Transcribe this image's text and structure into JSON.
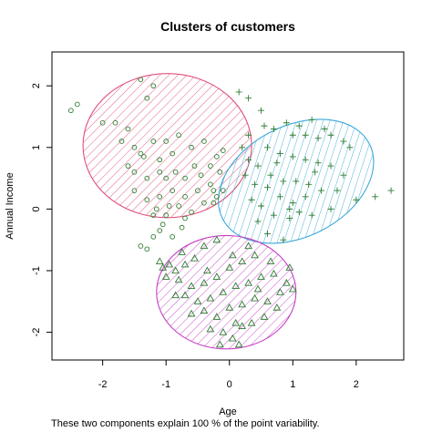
{
  "chart_data": {
    "type": "scatter",
    "title": "Clusters of customers",
    "xlabel": "Age",
    "ylabel": "Annual Income",
    "subtitle": "These two components explain 100 % of the point variability.",
    "xlim": [
      -2.8,
      2.75
    ],
    "ylim": [
      -2.45,
      2.55
    ],
    "x_ticks": [
      -2,
      -1,
      0,
      1,
      2
    ],
    "y_ticks": [
      -2,
      -1,
      0,
      1,
      2
    ],
    "grid": false,
    "colors": {
      "points": "#2e7d32",
      "cluster_1": "#e0507a",
      "cluster_2": "#3aa8d8",
      "cluster_3": "#c43fc4"
    },
    "clusters": [
      {
        "marker": "circle",
        "color": "#e0507a",
        "ellipse": {
          "cx": -0.98,
          "cy": 1.03,
          "rx": 1.33,
          "ry": 1.17,
          "angle": 0
        },
        "points": [
          [
            -2.5,
            1.6
          ],
          [
            -2.4,
            1.7
          ],
          [
            -2.0,
            1.4
          ],
          [
            -1.8,
            1.4
          ],
          [
            -1.6,
            1.3
          ],
          [
            -1.4,
            2.1
          ],
          [
            -1.3,
            1.8
          ],
          [
            -1.2,
            2.0
          ],
          [
            -1.7,
            1.1
          ],
          [
            -1.5,
            1.0
          ],
          [
            -1.4,
            0.9
          ],
          [
            -1.6,
            0.7
          ],
          [
            -1.35,
            0.85
          ],
          [
            -1.2,
            1.1
          ],
          [
            -1.1,
            0.8
          ],
          [
            -1.0,
            1.1
          ],
          [
            -0.9,
            0.9
          ],
          [
            -1.5,
            0.6
          ],
          [
            -1.3,
            0.5
          ],
          [
            -1.1,
            0.6
          ],
          [
            -1.0,
            0.5
          ],
          [
            -0.85,
            0.6
          ],
          [
            -0.7,
            0.5
          ],
          [
            -0.55,
            0.7
          ],
          [
            -0.45,
            0.55
          ],
          [
            -0.3,
            0.7
          ],
          [
            -0.2,
            0.85
          ],
          [
            -0.1,
            0.95
          ],
          [
            -0.15,
            0.6
          ],
          [
            -0.3,
            0.4
          ],
          [
            -0.5,
            0.3
          ],
          [
            -0.7,
            0.2
          ],
          [
            -0.9,
            0.3
          ],
          [
            -1.1,
            0.2
          ],
          [
            -1.3,
            0.15
          ],
          [
            -1.5,
            0.3
          ],
          [
            -1.2,
            -0.1
          ],
          [
            -1.0,
            -0.1
          ],
          [
            -0.8,
            0.05
          ],
          [
            -0.6,
            -0.05
          ],
          [
            -0.4,
            0.1
          ],
          [
            -0.2,
            0.2
          ],
          [
            -0.1,
            0.3
          ],
          [
            -0.25,
            0.1
          ],
          [
            -1.05,
            -0.25
          ],
          [
            -0.9,
            -0.45
          ],
          [
            -1.2,
            -0.45
          ],
          [
            -0.75,
            -0.3
          ],
          [
            -1.4,
            -0.6
          ],
          [
            -1.1,
            -0.35
          ],
          [
            -0.6,
            1.0
          ],
          [
            -0.8,
            1.2
          ],
          [
            -0.4,
            1.1
          ],
          [
            -0.25,
            0.3
          ],
          [
            -1.15,
            0.0
          ],
          [
            -0.95,
            0.05
          ],
          [
            -0.7,
            -0.15
          ],
          [
            -1.3,
            -0.65
          ]
        ]
      },
      {
        "marker": "plus",
        "color": "#3aa8d8",
        "ellipse": {
          "cx": 1.05,
          "cy": 0.45,
          "rx": 1.3,
          "ry": 0.9,
          "angle": -27
        },
        "points": [
          [
            0.15,
            1.9
          ],
          [
            0.3,
            1.8
          ],
          [
            0.5,
            1.6
          ],
          [
            0.3,
            1.2
          ],
          [
            0.55,
            1.35
          ],
          [
            0.7,
            1.3
          ],
          [
            0.9,
            1.4
          ],
          [
            1.1,
            1.35
          ],
          [
            1.3,
            1.45
          ],
          [
            1.5,
            1.3
          ],
          [
            1.6,
            1.2
          ],
          [
            1.8,
            1.1
          ],
          [
            1.4,
            1.15
          ],
          [
            1.2,
            1.2
          ],
          [
            1.0,
            1.2
          ],
          [
            0.6,
            1.0
          ],
          [
            0.8,
            0.9
          ],
          [
            1.0,
            0.85
          ],
          [
            1.2,
            0.8
          ],
          [
            1.4,
            0.75
          ],
          [
            1.6,
            0.7
          ],
          [
            1.8,
            0.55
          ],
          [
            0.3,
            0.8
          ],
          [
            0.45,
            0.7
          ],
          [
            0.65,
            0.55
          ],
          [
            0.85,
            0.45
          ],
          [
            1.05,
            0.45
          ],
          [
            1.25,
            0.4
          ],
          [
            1.45,
            0.3
          ],
          [
            1.7,
            0.3
          ],
          [
            0.25,
            0.55
          ],
          [
            0.4,
            0.4
          ],
          [
            0.6,
            0.35
          ],
          [
            0.8,
            0.2
          ],
          [
            1.0,
            0.1
          ],
          [
            1.2,
            0.2
          ],
          [
            0.35,
            0.15
          ],
          [
            0.5,
            0.05
          ],
          [
            0.7,
            -0.1
          ],
          [
            0.95,
            -0.15
          ],
          [
            1.1,
            -0.05
          ],
          [
            0.45,
            -0.2
          ],
          [
            0.6,
            -0.4
          ],
          [
            0.85,
            -0.5
          ],
          [
            1.3,
            -0.1
          ],
          [
            1.6,
            0.0
          ],
          [
            2.0,
            0.15
          ],
          [
            2.3,
            0.2
          ],
          [
            2.55,
            0.3
          ],
          [
            1.9,
            1.0
          ],
          [
            0.2,
            1.0
          ],
          [
            0.95,
            0.0
          ],
          [
            0.75,
            0.75
          ],
          [
            1.35,
            0.6
          ]
        ]
      },
      {
        "marker": "triangle",
        "color": "#c43fc4",
        "ellipse": {
          "cx": -0.05,
          "cy": -1.35,
          "rx": 1.1,
          "ry": 0.92,
          "angle": 0
        },
        "points": [
          [
            -1.1,
            -0.85
          ],
          [
            -1.05,
            -0.95
          ],
          [
            -0.95,
            -0.9
          ],
          [
            -0.85,
            -1.0
          ],
          [
            -0.7,
            -0.9
          ],
          [
            -0.55,
            -0.8
          ],
          [
            -0.4,
            -0.6
          ],
          [
            -0.2,
            -0.5
          ],
          [
            -1.0,
            -1.1
          ],
          [
            -0.8,
            -1.15
          ],
          [
            -0.6,
            -1.25
          ],
          [
            -0.4,
            -1.2
          ],
          [
            -0.2,
            -1.1
          ],
          [
            0.0,
            -0.95
          ],
          [
            0.2,
            -0.85
          ],
          [
            0.4,
            -0.75
          ],
          [
            -0.7,
            -1.4
          ],
          [
            -0.5,
            -1.5
          ],
          [
            -0.3,
            -1.45
          ],
          [
            -0.1,
            -1.35
          ],
          [
            0.1,
            -1.25
          ],
          [
            0.3,
            -1.2
          ],
          [
            0.5,
            -1.1
          ],
          [
            0.7,
            -1.05
          ],
          [
            -0.6,
            -1.7
          ],
          [
            -0.4,
            -1.65
          ],
          [
            -0.2,
            -1.75
          ],
          [
            0.0,
            -1.6
          ],
          [
            0.2,
            -1.55
          ],
          [
            0.4,
            -1.45
          ],
          [
            0.6,
            -1.5
          ],
          [
            0.8,
            -1.35
          ],
          [
            -0.3,
            -1.95
          ],
          [
            -0.1,
            -2.0
          ],
          [
            0.05,
            -2.1
          ],
          [
            0.15,
            -2.2
          ],
          [
            0.2,
            -1.9
          ],
          [
            0.35,
            -1.85
          ],
          [
            0.55,
            -1.75
          ],
          [
            0.75,
            -1.6
          ],
          [
            -0.15,
            -2.2
          ],
          [
            0.1,
            -1.85
          ],
          [
            0.9,
            -1.2
          ],
          [
            0.95,
            -0.95
          ],
          [
            1.0,
            -1.3
          ],
          [
            0.3,
            -0.6
          ],
          [
            0.05,
            -0.75
          ],
          [
            -0.35,
            -1.0
          ],
          [
            -0.85,
            -1.4
          ],
          [
            -0.75,
            -0.7
          ],
          [
            0.45,
            -1.3
          ],
          [
            0.65,
            -0.85
          ]
        ]
      }
    ]
  }
}
